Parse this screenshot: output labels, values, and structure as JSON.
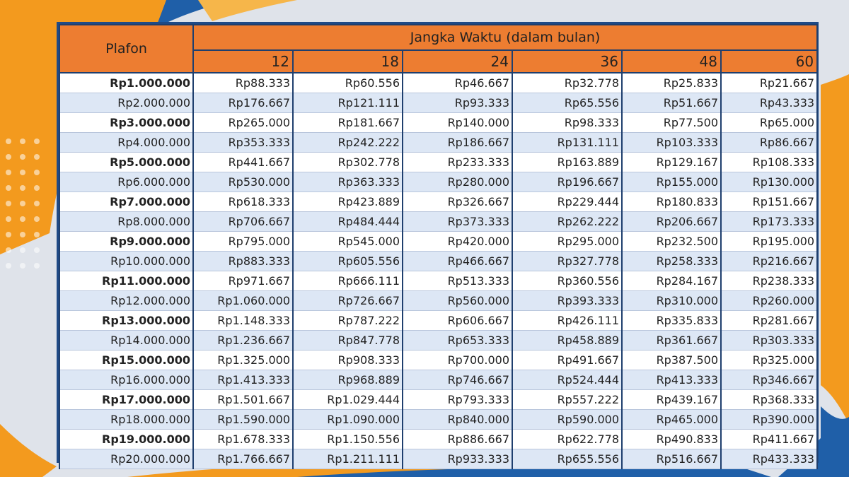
{
  "table": {
    "plafon_header": "Plafon",
    "term_header": "Jangka Waktu (dalam bulan)",
    "months": [
      "12",
      "18",
      "24",
      "36",
      "48",
      "60"
    ],
    "rows": [
      {
        "plafon": "Rp1.000.000",
        "values": [
          "Rp88.333",
          "Rp60.556",
          "Rp46.667",
          "Rp32.778",
          "Rp25.833",
          "Rp21.667"
        ]
      },
      {
        "plafon": "Rp2.000.000",
        "values": [
          "Rp176.667",
          "Rp121.111",
          "Rp93.333",
          "Rp65.556",
          "Rp51.667",
          "Rp43.333"
        ]
      },
      {
        "plafon": "Rp3.000.000",
        "values": [
          "Rp265.000",
          "Rp181.667",
          "Rp140.000",
          "Rp98.333",
          "Rp77.500",
          "Rp65.000"
        ]
      },
      {
        "plafon": "Rp4.000.000",
        "values": [
          "Rp353.333",
          "Rp242.222",
          "Rp186.667",
          "Rp131.111",
          "Rp103.333",
          "Rp86.667"
        ]
      },
      {
        "plafon": "Rp5.000.000",
        "values": [
          "Rp441.667",
          "Rp302.778",
          "Rp233.333",
          "Rp163.889",
          "Rp129.167",
          "Rp108.333"
        ]
      },
      {
        "plafon": "Rp6.000.000",
        "values": [
          "Rp530.000",
          "Rp363.333",
          "Rp280.000",
          "Rp196.667",
          "Rp155.000",
          "Rp130.000"
        ]
      },
      {
        "plafon": "Rp7.000.000",
        "values": [
          "Rp618.333",
          "Rp423.889",
          "Rp326.667",
          "Rp229.444",
          "Rp180.833",
          "Rp151.667"
        ]
      },
      {
        "plafon": "Rp8.000.000",
        "values": [
          "Rp706.667",
          "Rp484.444",
          "Rp373.333",
          "Rp262.222",
          "Rp206.667",
          "Rp173.333"
        ]
      },
      {
        "plafon": "Rp9.000.000",
        "values": [
          "Rp795.000",
          "Rp545.000",
          "Rp420.000",
          "Rp295.000",
          "Rp232.500",
          "Rp195.000"
        ]
      },
      {
        "plafon": "Rp10.000.000",
        "values": [
          "Rp883.333",
          "Rp605.556",
          "Rp466.667",
          "Rp327.778",
          "Rp258.333",
          "Rp216.667"
        ]
      },
      {
        "plafon": "Rp11.000.000",
        "values": [
          "Rp971.667",
          "Rp666.111",
          "Rp513.333",
          "Rp360.556",
          "Rp284.167",
          "Rp238.333"
        ]
      },
      {
        "plafon": "Rp12.000.000",
        "values": [
          "Rp1.060.000",
          "Rp726.667",
          "Rp560.000",
          "Rp393.333",
          "Rp310.000",
          "Rp260.000"
        ]
      },
      {
        "plafon": "Rp13.000.000",
        "values": [
          "Rp1.148.333",
          "Rp787.222",
          "Rp606.667",
          "Rp426.111",
          "Rp335.833",
          "Rp281.667"
        ]
      },
      {
        "plafon": "Rp14.000.000",
        "values": [
          "Rp1.236.667",
          "Rp847.778",
          "Rp653.333",
          "Rp458.889",
          "Rp361.667",
          "Rp303.333"
        ]
      },
      {
        "plafon": "Rp15.000.000",
        "values": [
          "Rp1.325.000",
          "Rp908.333",
          "Rp700.000",
          "Rp491.667",
          "Rp387.500",
          "Rp325.000"
        ]
      },
      {
        "plafon": "Rp16.000.000",
        "values": [
          "Rp1.413.333",
          "Rp968.889",
          "Rp746.667",
          "Rp524.444",
          "Rp413.333",
          "Rp346.667"
        ]
      },
      {
        "plafon": "Rp17.000.000",
        "values": [
          "Rp1.501.667",
          "Rp1.029.444",
          "Rp793.333",
          "Rp557.222",
          "Rp439.167",
          "Rp368.333"
        ]
      },
      {
        "plafon": "Rp18.000.000",
        "values": [
          "Rp1.590.000",
          "Rp1.090.000",
          "Rp840.000",
          "Rp590.000",
          "Rp465.000",
          "Rp390.000"
        ]
      },
      {
        "plafon": "Rp19.000.000",
        "values": [
          "Rp1.678.333",
          "Rp1.150.556",
          "Rp886.667",
          "Rp622.778",
          "Rp490.833",
          "Rp411.667"
        ]
      },
      {
        "plafon": "Rp20.000.000",
        "values": [
          "Rp1.766.667",
          "Rp1.211.111",
          "Rp933.333",
          "Rp655.556",
          "Rp516.667",
          "Rp433.333"
        ]
      }
    ]
  },
  "colors": {
    "header_orange": "#ed7d31",
    "border_navy": "#1f3f6e",
    "stripe_blue": "#dde7f5",
    "bg_orange": "#f39a1e",
    "bg_blue": "#1f5fa8"
  }
}
